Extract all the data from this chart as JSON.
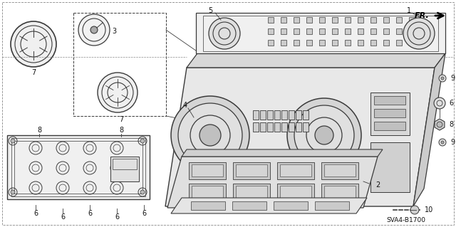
{
  "bg_color": "#ffffff",
  "lc": "#3a3a3a",
  "tc": "#111111",
  "diagram_code": "SVA4-B1700",
  "figsize": [
    6.4,
    3.19
  ],
  "dpi": 100
}
